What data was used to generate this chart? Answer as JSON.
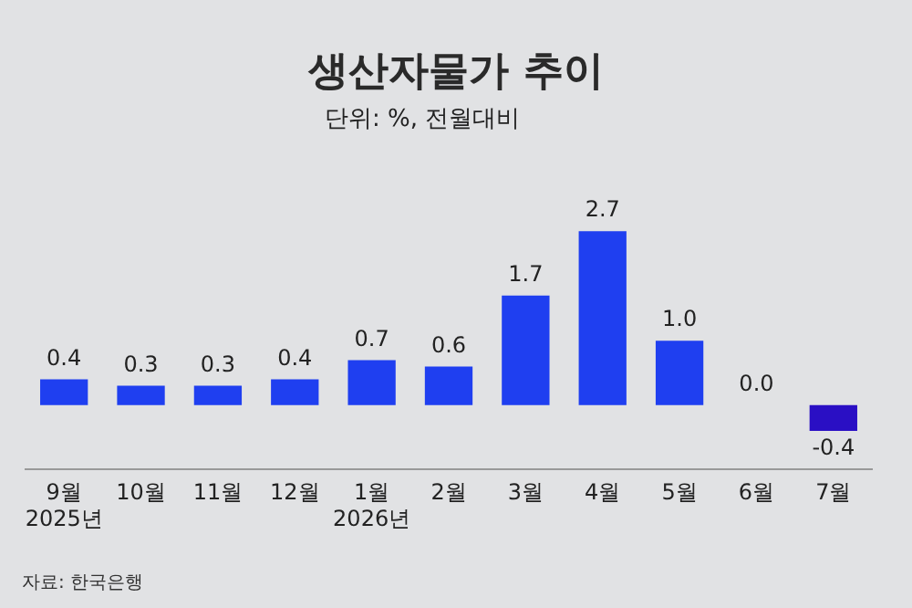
{
  "chart_data": {
    "type": "bar",
    "title": "생산자물가 추이",
    "subtitle": "단위: %, 전월대비",
    "categories": [
      "9월\n2025년",
      "10월",
      "11월",
      "12월",
      "1월\n2026년",
      "2월",
      "3월",
      "4월",
      "5월",
      "6월",
      "7월"
    ],
    "values": [
      0.4,
      0.3,
      0.3,
      0.4,
      0.7,
      0.6,
      1.7,
      2.7,
      1.0,
      0.0,
      -0.4
    ],
    "colors": [
      "#1f3ff0",
      "#1f3ff0",
      "#1f3ff0",
      "#1f3ff0",
      "#1f3ff0",
      "#1f3ff0",
      "#1f3ff0",
      "#1f3ff0",
      "#1f3ff0",
      "#1f3ff0",
      "#2a0fc4"
    ],
    "value_labels": [
      "0.4",
      "0.3",
      "0.3",
      "0.4",
      "0.7",
      "0.6",
      "1.7",
      "2.7",
      "1.0",
      "0.0",
      "-0.4"
    ],
    "grid": false,
    "legend": false,
    "annotations": [
      "자료: 한국은행"
    ]
  }
}
